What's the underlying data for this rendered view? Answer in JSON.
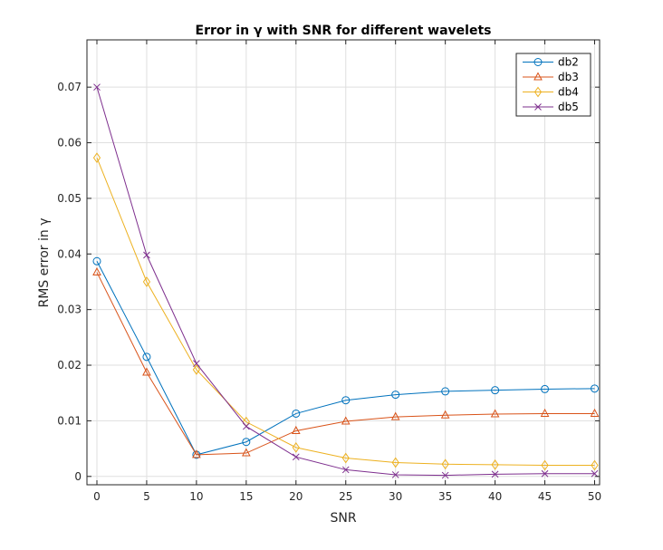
{
  "chart_data": {
    "type": "line",
    "title": "Error in γ with SNR for different wavelets",
    "xlabel": "SNR",
    "ylabel": "RMS error in γ",
    "xlim": [
      -1,
      50.5
    ],
    "ylim": [
      -0.0015,
      0.0785
    ],
    "xticks": [
      0,
      5,
      10,
      15,
      20,
      25,
      30,
      35,
      40,
      45,
      50
    ],
    "yticks": [
      0,
      0.01,
      0.02,
      0.03,
      0.04,
      0.05,
      0.06,
      0.07
    ],
    "ytick_labels": [
      "0",
      "0.01",
      "0.02",
      "0.03",
      "0.04",
      "0.05",
      "0.06",
      "0.07"
    ],
    "grid": true,
    "legend": "top-right",
    "x": [
      0,
      5,
      10,
      15,
      20,
      25,
      30,
      35,
      40,
      45,
      50
    ],
    "series": [
      {
        "name": "db2",
        "marker": "circle",
        "color": "#0072bd",
        "values": [
          0.0387,
          0.0215,
          0.0039,
          0.0062,
          0.0113,
          0.0137,
          0.0147,
          0.0153,
          0.0155,
          0.0157,
          0.0158
        ]
      },
      {
        "name": "db3",
        "marker": "triangle",
        "color": "#d95319",
        "values": [
          0.0367,
          0.0187,
          0.0039,
          0.0042,
          0.0082,
          0.0099,
          0.0107,
          0.011,
          0.0112,
          0.0113,
          0.0113
        ]
      },
      {
        "name": "db4",
        "marker": "diamond",
        "color": "#edb120",
        "values": [
          0.0573,
          0.035,
          0.0192,
          0.0098,
          0.0052,
          0.0033,
          0.0025,
          0.0022,
          0.0021,
          0.002,
          0.002
        ]
      },
      {
        "name": "db5",
        "marker": "x",
        "color": "#7e2f8e",
        "values": [
          0.07,
          0.0398,
          0.0203,
          0.009,
          0.0035,
          0.0012,
          0.0003,
          0.0002,
          0.0004,
          0.0005,
          0.0005
        ]
      }
    ]
  }
}
